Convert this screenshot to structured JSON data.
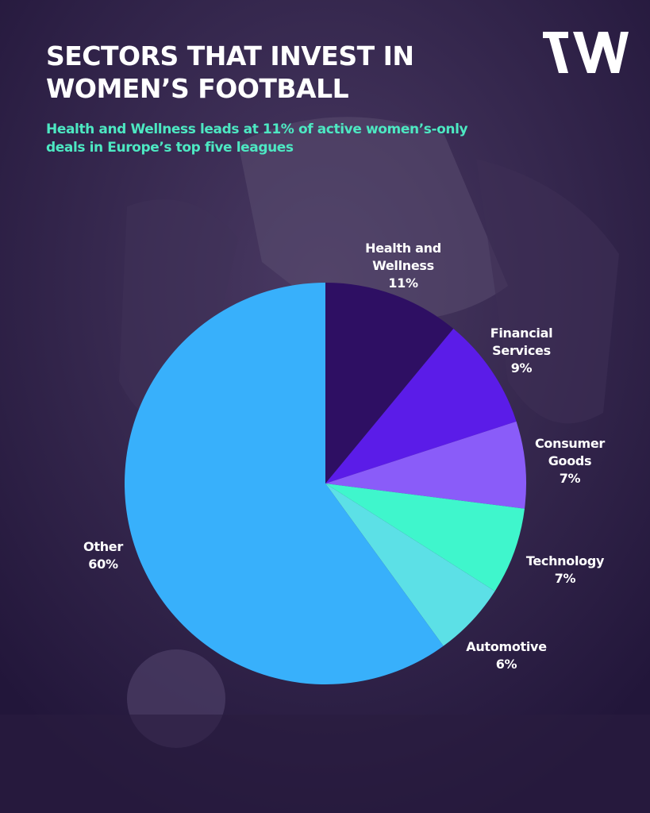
{
  "header": {
    "title_line1": "SECTORS THAT INVEST IN",
    "title_line2": "WOMEN’S FOOTBALL",
    "subtitle_line1": "Health and Wellness leads at 11% of active women’s-only",
    "subtitle_line2": "deals in Europe’s top five leagues"
  },
  "logo": {
    "icon": "w-logo-icon",
    "color": "#ffffff"
  },
  "chart_data": {
    "type": "pie",
    "title": "SECTORS THAT INVEST IN WOMEN’S FOOTBALL",
    "subtitle": "Health and Wellness leads at 11% of active women’s-only deals in Europe’s top five leagues",
    "slices": [
      {
        "label_lines": [
          "Health and",
          "Wellness"
        ],
        "value_label": "11%",
        "value": 11,
        "color": "#2e0f63"
      },
      {
        "label_lines": [
          "Financial",
          "Services"
        ],
        "value_label": "9%",
        "value": 9,
        "color": "#5b1ce8"
      },
      {
        "label_lines": [
          "Consumer",
          "Goods"
        ],
        "value_label": "7%",
        "value": 7,
        "color": "#8a5cf9"
      },
      {
        "label_lines": [
          "Technology"
        ],
        "value_label": "7%",
        "value": 7,
        "color": "#3ff6cc"
      },
      {
        "label_lines": [
          "Automotive"
        ],
        "value_label": "6%",
        "value": 6,
        "color": "#5ce0e6"
      },
      {
        "label_lines": [
          "Other"
        ],
        "value_label": "60%",
        "value": 60,
        "color": "#38b0fb"
      }
    ],
    "start": "12 o'clock",
    "direction": "clockwise"
  }
}
